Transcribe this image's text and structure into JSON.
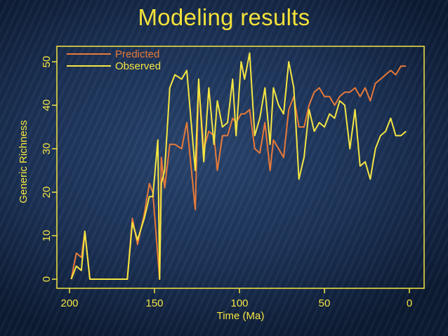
{
  "slide": {
    "title": "Modeling results"
  },
  "colors": {
    "predicted": "#e87a38",
    "observed": "#f5e642",
    "axis": "#f5e642",
    "text": "#f5e642"
  },
  "chart_data": {
    "type": "line",
    "title": "",
    "xlabel": "Time (Ma)",
    "ylabel": "Generic Richness",
    "xlim": [
      200,
      0
    ],
    "ylim": [
      0,
      52
    ],
    "xticks": [
      200,
      150,
      100,
      50,
      0
    ],
    "yticks": [
      0,
      10,
      20,
      30,
      40,
      50
    ],
    "legend_placement": "top-left",
    "grid": false,
    "series": [
      {
        "name": "Predicted",
        "color": "#e87a38",
        "x": [
          199,
          196,
          193,
          191,
          188,
          185,
          180,
          175,
          170,
          166,
          163,
          160,
          156,
          153,
          151,
          147,
          146,
          144,
          141,
          138,
          134,
          131,
          126,
          124,
          121,
          118,
          115,
          113,
          110,
          107,
          104,
          102,
          99,
          97,
          94,
          91,
          88,
          85,
          82,
          80,
          77,
          74,
          71,
          68,
          65,
          62,
          59,
          56,
          53,
          50,
          47,
          44,
          41,
          38,
          35,
          32,
          29,
          26,
          23,
          20,
          17,
          14,
          11,
          8,
          5,
          2
        ],
        "y": [
          0,
          6,
          5,
          11,
          0,
          0,
          0,
          0,
          0,
          0,
          14,
          8,
          15,
          22,
          20,
          0,
          28,
          21,
          31,
          31,
          30,
          36,
          16,
          45,
          30,
          34,
          33,
          25,
          33,
          33,
          37,
          36,
          38,
          38,
          39,
          30,
          29,
          36,
          25,
          32,
          30,
          28,
          39,
          42,
          35,
          35,
          40,
          43,
          44,
          42,
          42,
          40,
          42,
          43,
          43,
          44,
          42,
          44,
          41,
          45,
          46,
          47,
          48,
          47,
          49,
          49
        ]
      },
      {
        "name": "Observed",
        "color": "#f5e642",
        "x": [
          199,
          196,
          193,
          191,
          188,
          185,
          180,
          175,
          170,
          166,
          163,
          160,
          156,
          153,
          151,
          148,
          147,
          146,
          144,
          141,
          138,
          134,
          131,
          126,
          124,
          121,
          118,
          115,
          113,
          110,
          107,
          104,
          102,
          99,
          97,
          94,
          91,
          88,
          85,
          82,
          80,
          77,
          74,
          71,
          68,
          65,
          62,
          59,
          56,
          53,
          50,
          47,
          44,
          41,
          38,
          35,
          32,
          29,
          26,
          23,
          20,
          17,
          14,
          11,
          8,
          5,
          2
        ],
        "y": [
          0,
          3,
          2,
          11,
          0,
          0,
          0,
          0,
          0,
          0,
          13,
          9,
          14,
          19,
          19,
          32,
          0,
          22,
          25,
          44,
          47,
          46,
          48,
          25,
          46,
          27,
          44,
          31,
          41,
          35,
          36,
          46,
          33,
          50,
          46,
          52,
          33,
          37,
          44,
          31,
          44,
          40,
          38,
          50,
          44,
          23,
          28,
          39,
          34,
          36,
          35,
          38,
          37,
          41,
          40,
          30,
          39,
          26,
          27,
          23,
          30,
          33,
          34,
          37,
          33,
          33,
          34
        ]
      }
    ]
  }
}
